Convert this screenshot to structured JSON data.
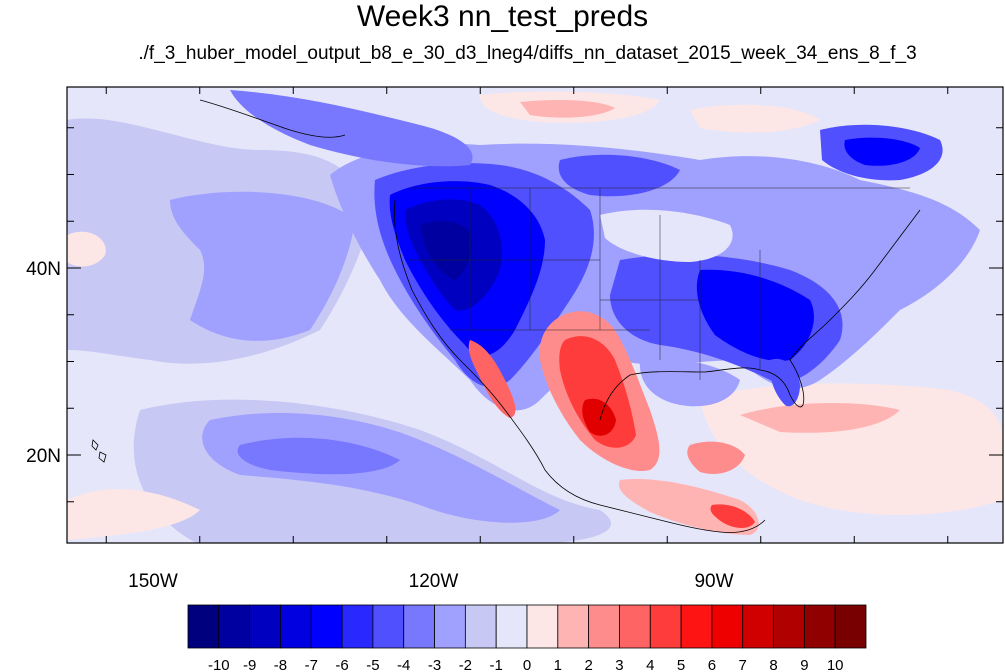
{
  "title": "Week3 nn_test_preds",
  "subtitle": "./f_3_huber_model_output_b8_e_30_d3_lneg4/diffs_nn_dataset_2015_week_34_ens_8_f_3",
  "map": {
    "lat_labels": [
      {
        "lat": 40,
        "label": "40N"
      },
      {
        "lat": 20,
        "label": "20N"
      }
    ],
    "lon_labels": [
      {
        "lon": -150,
        "label": "150W"
      },
      {
        "lon": -120,
        "label": "120W"
      },
      {
        "lon": -90,
        "label": "90W"
      }
    ],
    "colorbar": {
      "levels": [
        "-10",
        "-9",
        "-8",
        "-7",
        "-6",
        "-5",
        "-4",
        "-3",
        "-2",
        "-1",
        "0",
        "1",
        "2",
        "3",
        "4",
        "5",
        "6",
        "7",
        "8",
        "9",
        "10"
      ],
      "colors": [
        "#00007f",
        "#0000a0",
        "#0000c0",
        "#0000e0",
        "#0000ff",
        "#2828ff",
        "#5050ff",
        "#7878ff",
        "#a0a0ff",
        "#c8c8f5",
        "#e6e6fa",
        "#fde6e6",
        "#ffb4b4",
        "#ff8c8c",
        "#ff6464",
        "#ff3c3c",
        "#ff1414",
        "#ee0000",
        "#d00000",
        "#b00000",
        "#900000",
        "#780000"
      ]
    }
  }
}
